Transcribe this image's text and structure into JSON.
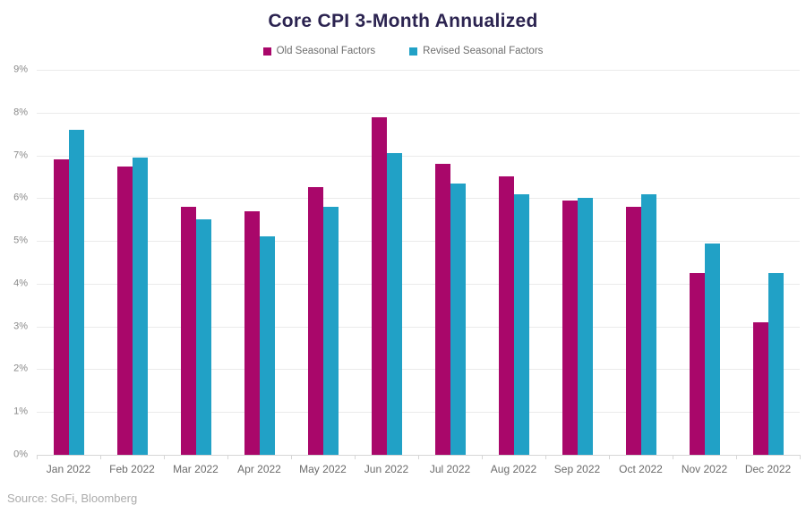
{
  "title": "Core CPI 3-Month Annualized",
  "source": "Source: SoFi, Bloomberg",
  "colors": {
    "old_series": "#A9076A",
    "revised_series": "#21A1C6",
    "title_text": "#2B2350",
    "gridline": "#EBEBEB",
    "axis_text": "#8A8A8A"
  },
  "legend": {
    "items": [
      {
        "label": "Old Seasonal Factors",
        "color": "#A9076A"
      },
      {
        "label": "Revised Seasonal Factors",
        "color": "#21A1C6"
      }
    ]
  },
  "chart_data": {
    "type": "bar",
    "title": "Core CPI 3-Month Annualized",
    "xlabel": "",
    "ylabel": "",
    "categories": [
      "Jan 2022",
      "Feb 2022",
      "Mar 2022",
      "Apr 2022",
      "May 2022",
      "Jun 2022",
      "Jul 2022",
      "Aug 2022",
      "Sep 2022",
      "Oct 2022",
      "Nov 2022",
      "Dec 2022"
    ],
    "series": [
      {
        "name": "Old Seasonal Factors",
        "color": "#A9076A",
        "values": [
          6.9,
          6.75,
          5.8,
          5.7,
          6.25,
          7.9,
          6.8,
          6.5,
          5.95,
          5.8,
          4.25,
          3.1
        ]
      },
      {
        "name": "Revised Seasonal Factors",
        "color": "#21A1C6",
        "values": [
          7.6,
          6.95,
          5.5,
          5.1,
          5.8,
          7.05,
          6.35,
          6.1,
          6.0,
          6.1,
          4.95,
          4.25
        ]
      }
    ],
    "ylim": [
      0,
      9
    ],
    "ytick_step": 1,
    "yticks": [
      "0%",
      "1%",
      "2%",
      "3%",
      "4%",
      "5%",
      "6%",
      "7%",
      "8%",
      "9%"
    ],
    "grid": true,
    "legend_position": "top"
  }
}
